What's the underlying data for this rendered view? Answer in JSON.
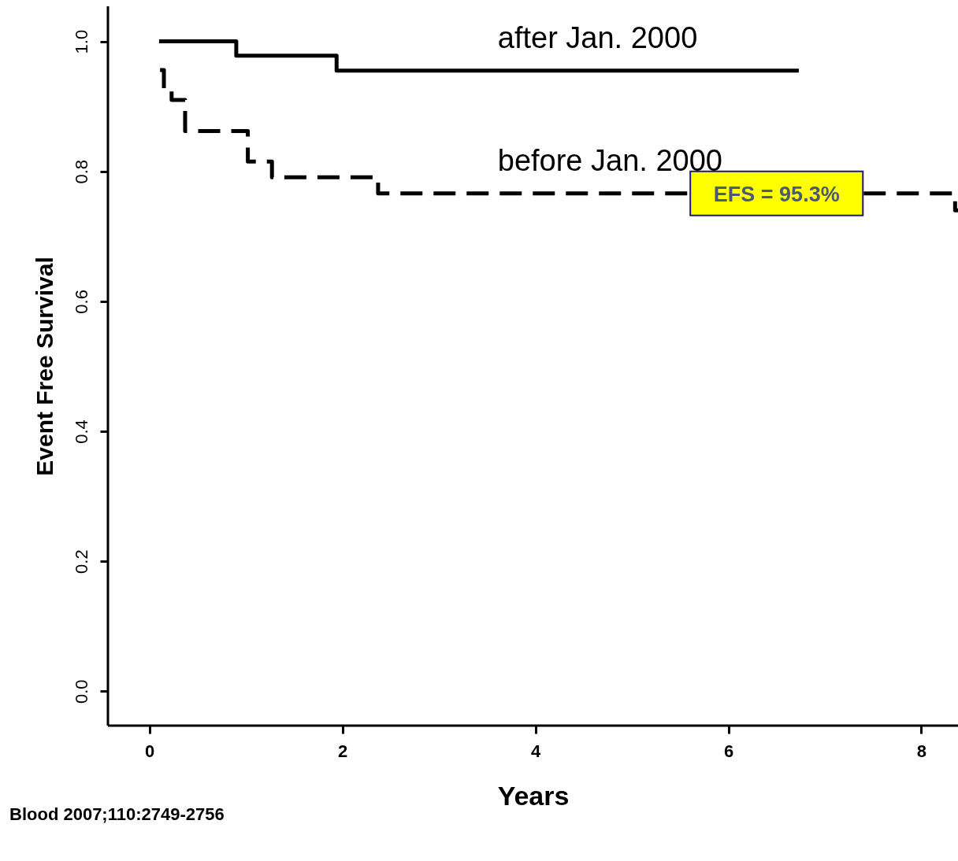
{
  "chart_data": {
    "type": "step",
    "xlabel": "Years",
    "ylabel": "Event Free Survival",
    "xlim": [
      -0.43,
      8.38
    ],
    "ylim": [
      -0.053,
      1.054
    ],
    "xticks": [
      0,
      2,
      4,
      6,
      8
    ],
    "yticks": [
      {
        "value": 0,
        "label": "0.0"
      },
      {
        "value": 0.2,
        "label": "0.2"
      },
      {
        "value": 0.4,
        "label": "0.4"
      },
      {
        "value": 0.6,
        "label": "0.6"
      },
      {
        "value": 0.8,
        "label": "0.8"
      },
      {
        "value": 1,
        "label": "1.0"
      }
    ],
    "grid": false,
    "legend": false,
    "marker": "none",
    "series": [
      {
        "name": "after Jan. 2000",
        "color": "#000000",
        "line_style": "solid",
        "x": [
          0.1,
          0.9,
          1.94,
          6.73
        ],
        "values": [
          1.0,
          0.978,
          0.955,
          0.955
        ]
      },
      {
        "name": "before Jan. 2000",
        "color": "#000000",
        "line_style": "dashed",
        "x": [
          0.11,
          0.15,
          0.23,
          0.37,
          1.02,
          1.27,
          2.37,
          8.35,
          8.38
        ],
        "values": [
          0.956,
          0.927,
          0.91,
          0.862,
          0.815,
          0.791,
          0.766,
          0.74,
          0.74
        ]
      }
    ],
    "annotations": [
      {
        "text": "EFS = 95.3%",
        "x": 6.5,
        "y": 0.766
      },
      "Blood 2007;110:2749-2756"
    ]
  }
}
